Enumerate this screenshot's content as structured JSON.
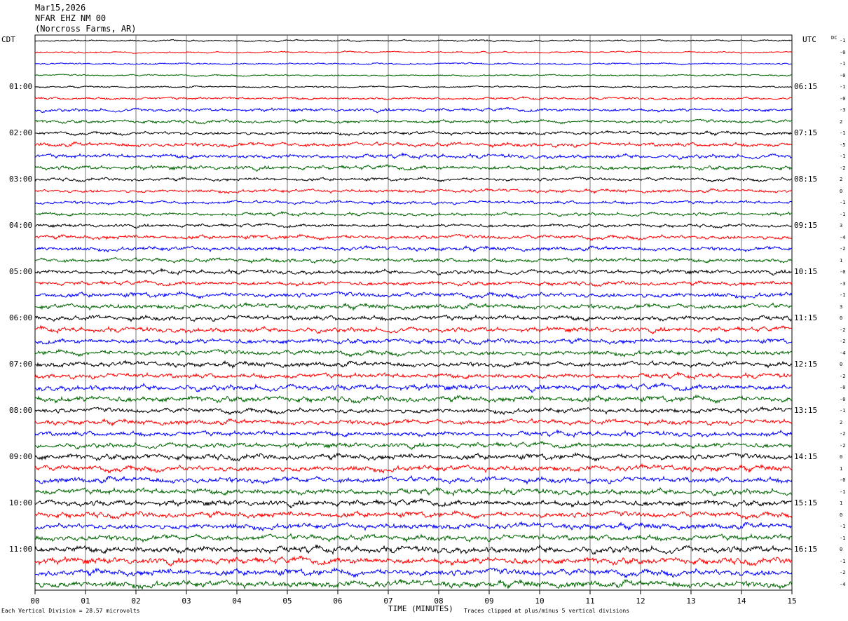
{
  "header": {
    "date": "Mar15,2026",
    "station": "NFAR EHZ NM 00",
    "location": "(Norcross Farms, AR)"
  },
  "left_zone_label": "CDT",
  "right_zone_label": "UTC",
  "dc_header": "DC",
  "chart_data": {
    "type": "line",
    "title": "",
    "xlabel": "TIME (MINUTES)",
    "xlim": [
      0,
      15
    ],
    "x_ticks": [
      "00",
      "01",
      "02",
      "03",
      "04",
      "05",
      "06",
      "07",
      "08",
      "09",
      "10",
      "11",
      "12",
      "13",
      "14",
      "15"
    ],
    "trace_colors": [
      "#000000",
      "#ff0000",
      "#0000ff",
      "#006600"
    ],
    "num_traces": 48,
    "minutes_per_trace": 15,
    "cdt_hour_labels": [
      "01:00",
      "02:00",
      "03:00",
      "04:00",
      "05:00",
      "06:00",
      "07:00",
      "08:00",
      "09:00",
      "10:00",
      "11:00"
    ],
    "utc_hour_labels": [
      "06:15",
      "07:15",
      "08:15",
      "09:15",
      "10:15",
      "11:15",
      "12:15",
      "13:15",
      "14:15",
      "15:15",
      "16:15"
    ],
    "dc_offsets": [
      "-1",
      "-0",
      "-1",
      "-0",
      "-1",
      "-0",
      "-3",
      "2",
      "-1",
      "-5",
      "-1",
      "-2",
      "2",
      "0",
      "-1",
      "-1",
      "3",
      "-4",
      "-2",
      "1",
      "-0",
      "-3",
      "-1",
      "3",
      "0",
      "-2",
      "-2",
      "-4",
      "0",
      "-2",
      "-0",
      "-0",
      "-1",
      "2",
      "-2",
      "-2",
      "0",
      "1",
      "-0",
      "-1",
      "1",
      "0",
      "-1",
      "-1",
      "0",
      "-1",
      "-2",
      "-4"
    ],
    "noise_levels": [
      1.0,
      1.0,
      1.0,
      1.0,
      1.0,
      1.5,
      2.0,
      2.0,
      2.0,
      2.5,
      2.5,
      2.5,
      2.0,
      2.0,
      2.0,
      2.0,
      2.0,
      2.5,
      2.5,
      2.5,
      2.5,
      2.5,
      3.0,
      3.0,
      3.0,
      3.0,
      3.0,
      3.0,
      3.0,
      3.0,
      3.5,
      3.5,
      3.0,
      3.0,
      3.0,
      3.0,
      3.5,
      3.5,
      3.5,
      3.5,
      3.5,
      3.5,
      3.5,
      3.5,
      4.0,
      4.0,
      4.0,
      4.0
    ]
  },
  "footer": {
    "vertical_division": "Each Vertical Division =   28.57 microvolts",
    "clipping": "Traces clipped at plus/minus 5 vertical divisions"
  }
}
